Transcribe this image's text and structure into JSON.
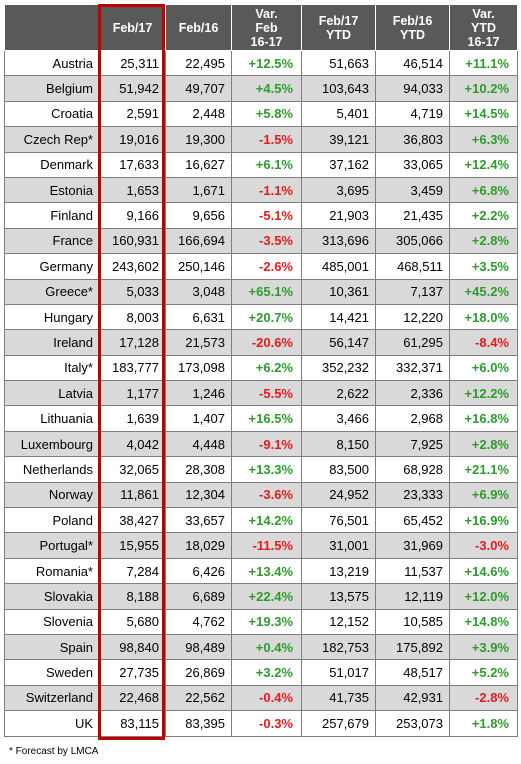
{
  "headers": [
    "",
    "Feb/17",
    "Feb/16",
    "Var. Feb 16-17",
    "Feb/17 YTD",
    "Feb/16 YTD",
    "Var. YTD 16-17"
  ],
  "header_lines": [
    [
      ""
    ],
    [
      "Feb/17"
    ],
    [
      "Feb/16"
    ],
    [
      "Var.",
      "Feb",
      "16-17"
    ],
    [
      "Feb/17",
      "YTD"
    ],
    [
      "Feb/16",
      "YTD"
    ],
    [
      "Var.",
      "YTD",
      "16-17"
    ]
  ],
  "rows": [
    {
      "country": "Austria",
      "feb17": "25,311",
      "feb16": "22,495",
      "var": "+12.5%",
      "ytd17": "51,663",
      "ytd16": "46,514",
      "varytd": "+11.1%"
    },
    {
      "country": "Belgium",
      "feb17": "51,942",
      "feb16": "49,707",
      "var": "+4.5%",
      "ytd17": "103,643",
      "ytd16": "94,033",
      "varytd": "+10.2%"
    },
    {
      "country": "Croatia",
      "feb17": "2,591",
      "feb16": "2,448",
      "var": "+5.8%",
      "ytd17": "5,401",
      "ytd16": "4,719",
      "varytd": "+14.5%"
    },
    {
      "country": "Czech Rep*",
      "feb17": "19,016",
      "feb16": "19,300",
      "var": "-1.5%",
      "ytd17": "39,121",
      "ytd16": "36,803",
      "varytd": "+6.3%"
    },
    {
      "country": "Denmark",
      "feb17": "17,633",
      "feb16": "16,627",
      "var": "+6.1%",
      "ytd17": "37,162",
      "ytd16": "33,065",
      "varytd": "+12.4%"
    },
    {
      "country": "Estonia",
      "feb17": "1,653",
      "feb16": "1,671",
      "var": "-1.1%",
      "ytd17": "3,695",
      "ytd16": "3,459",
      "varytd": "+6.8%"
    },
    {
      "country": "Finland",
      "feb17": "9,166",
      "feb16": "9,656",
      "var": "-5.1%",
      "ytd17": "21,903",
      "ytd16": "21,435",
      "varytd": "+2.2%"
    },
    {
      "country": "France",
      "feb17": "160,931",
      "feb16": "166,694",
      "var": "-3.5%",
      "ytd17": "313,696",
      "ytd16": "305,066",
      "varytd": "+2.8%"
    },
    {
      "country": "Germany",
      "feb17": "243,602",
      "feb16": "250,146",
      "var": "-2.6%",
      "ytd17": "485,001",
      "ytd16": "468,511",
      "varytd": "+3.5%"
    },
    {
      "country": "Greece*",
      "feb17": "5,033",
      "feb16": "3,048",
      "var": "+65.1%",
      "ytd17": "10,361",
      "ytd16": "7,137",
      "varytd": "+45.2%"
    },
    {
      "country": "Hungary",
      "feb17": "8,003",
      "feb16": "6,631",
      "var": "+20.7%",
      "ytd17": "14,421",
      "ytd16": "12,220",
      "varytd": "+18.0%"
    },
    {
      "country": "Ireland",
      "feb17": "17,128",
      "feb16": "21,573",
      "var": "-20.6%",
      "ytd17": "56,147",
      "ytd16": "61,295",
      "varytd": "-8.4%"
    },
    {
      "country": "Italy*",
      "feb17": "183,777",
      "feb16": "173,098",
      "var": "+6.2%",
      "ytd17": "352,232",
      "ytd16": "332,371",
      "varytd": "+6.0%"
    },
    {
      "country": "Latvia",
      "feb17": "1,177",
      "feb16": "1,246",
      "var": "-5.5%",
      "ytd17": "2,622",
      "ytd16": "2,336",
      "varytd": "+12.2%"
    },
    {
      "country": "Lithuania",
      "feb17": "1,639",
      "feb16": "1,407",
      "var": "+16.5%",
      "ytd17": "3,466",
      "ytd16": "2,968",
      "varytd": "+16.8%"
    },
    {
      "country": "Luxembourg",
      "feb17": "4,042",
      "feb16": "4,448",
      "var": "-9.1%",
      "ytd17": "8,150",
      "ytd16": "7,925",
      "varytd": "+2.8%"
    },
    {
      "country": "Netherlands",
      "feb17": "32,065",
      "feb16": "28,308",
      "var": "+13.3%",
      "ytd17": "83,500",
      "ytd16": "68,928",
      "varytd": "+21.1%"
    },
    {
      "country": "Norway",
      "feb17": "11,861",
      "feb16": "12,304",
      "var": "-3.6%",
      "ytd17": "24,952",
      "ytd16": "23,333",
      "varytd": "+6.9%"
    },
    {
      "country": "Poland",
      "feb17": "38,427",
      "feb16": "33,657",
      "var": "+14.2%",
      "ytd17": "76,501",
      "ytd16": "65,452",
      "varytd": "+16.9%"
    },
    {
      "country": "Portugal*",
      "feb17": "15,955",
      "feb16": "18,029",
      "var": "-11.5%",
      "ytd17": "31,001",
      "ytd16": "31,969",
      "varytd": "-3.0%"
    },
    {
      "country": "Romania*",
      "feb17": "7,284",
      "feb16": "6,426",
      "var": "+13.4%",
      "ytd17": "13,219",
      "ytd16": "11,537",
      "varytd": "+14.6%"
    },
    {
      "country": "Slovakia",
      "feb17": "8,188",
      "feb16": "6,689",
      "var": "+22.4%",
      "ytd17": "13,575",
      "ytd16": "12,119",
      "varytd": "+12.0%"
    },
    {
      "country": "Slovenia",
      "feb17": "5,680",
      "feb16": "4,762",
      "var": "+19.3%",
      "ytd17": "12,152",
      "ytd16": "10,585",
      "varytd": "+14.8%"
    },
    {
      "country": "Spain",
      "feb17": "98,840",
      "feb16": "98,489",
      "var": "+0.4%",
      "ytd17": "182,753",
      "ytd16": "175,892",
      "varytd": "+3.9%"
    },
    {
      "country": "Sweden",
      "feb17": "27,735",
      "feb16": "26,869",
      "var": "+3.2%",
      "ytd17": "51,017",
      "ytd16": "48,517",
      "varytd": "+5.2%"
    },
    {
      "country": "Switzerland",
      "feb17": "22,468",
      "feb16": "22,562",
      "var": "-0.4%",
      "ytd17": "41,735",
      "ytd16": "42,931",
      "varytd": "-2.8%"
    },
    {
      "country": "UK",
      "feb17": "83,115",
      "feb16": "83,395",
      "var": "-0.3%",
      "ytd17": "257,679",
      "ytd16": "253,073",
      "varytd": "+1.8%"
    }
  ],
  "footnote": "* Forecast by LMCA",
  "colors": {
    "header_bg": "#595959",
    "header_text": "#ffffff",
    "positive": "#2e9b2e",
    "negative": "#e21c1c",
    "stripe": "#d9d9d9",
    "highlight_border": "#c00000"
  }
}
